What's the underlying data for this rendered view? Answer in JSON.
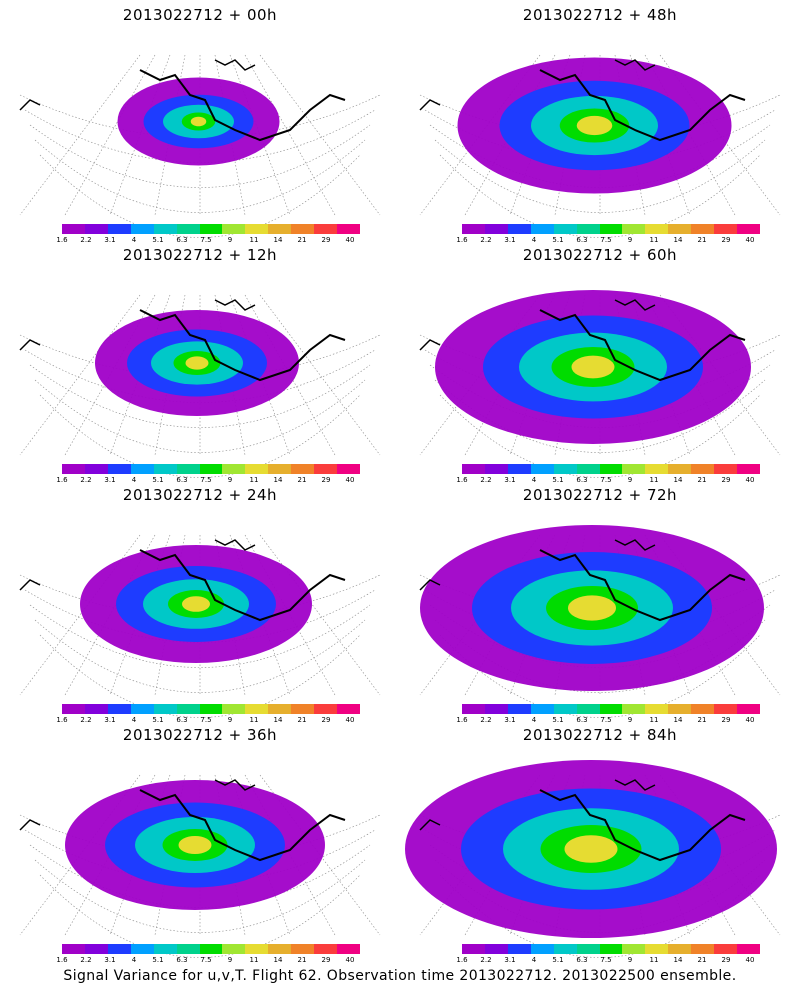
{
  "colorbar": {
    "colors": [
      "#a000c8",
      "#8200dc",
      "#1e3cff",
      "#00a0ff",
      "#00c8c8",
      "#00d28c",
      "#00dc00",
      "#a0e632",
      "#e6dc32",
      "#e6af2d",
      "#f08228",
      "#fa3c3c",
      "#f00082"
    ],
    "ticks": [
      "1.6",
      "2.2",
      "3.1",
      "4",
      "5.1",
      "6.3",
      "7.5",
      "9",
      "11",
      "14",
      "21",
      "29",
      "40"
    ]
  },
  "panels": [
    {
      "title": "2013022712 + 00h",
      "intensity": 0.15
    },
    {
      "title": "2013022712 + 48h",
      "intensity": 0.55
    },
    {
      "title": "2013022712 + 12h",
      "intensity": 0.3
    },
    {
      "title": "2013022712 + 60h",
      "intensity": 0.7
    },
    {
      "title": "2013022712 + 24h",
      "intensity": 0.4
    },
    {
      "title": "2013022712 + 72h",
      "intensity": 0.8
    },
    {
      "title": "2013022712 + 36h",
      "intensity": 0.5
    },
    {
      "title": "2013022712 + 84h",
      "intensity": 0.9
    }
  ],
  "footer": "Signal Variance for u,v,T. Flight 62. Observation time 2013022712. 2013022500 ensemble."
}
